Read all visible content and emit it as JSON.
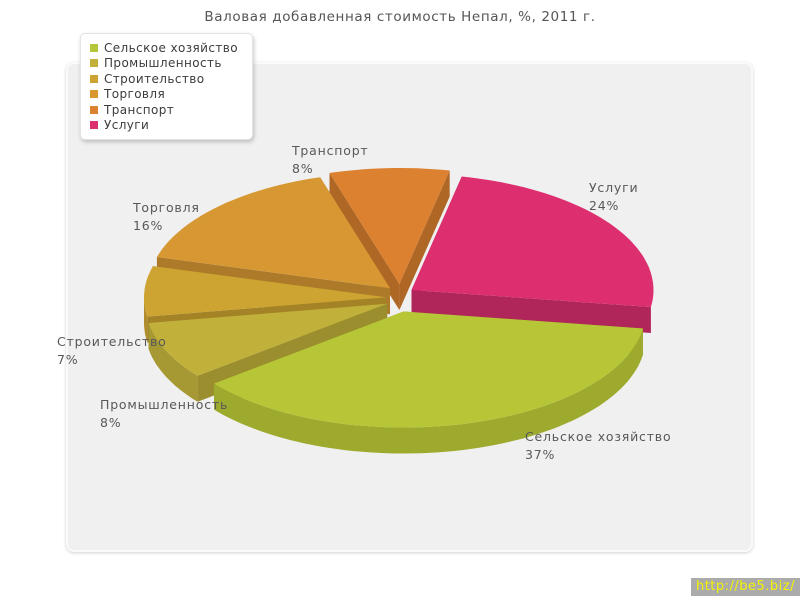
{
  "chart_data": {
    "type": "pie",
    "style": "3d-exploded",
    "title": "Валовая добавленная стоимость Непал, %, 2011 г.",
    "legend_position": "top-left",
    "start_angle_deg": -8.4,
    "direction": "clockwise",
    "slices": [
      {
        "name": "Сельское хозяйство",
        "value": 37,
        "percent_label": "37%",
        "color": "#b7c636"
      },
      {
        "name": "Промышленность",
        "value": 8,
        "percent_label": "8%",
        "color": "#c1b13a"
      },
      {
        "name": "Строительство",
        "value": 7,
        "percent_label": "7%",
        "color": "#cda431"
      },
      {
        "name": "Торговля",
        "value": 16,
        "percent_label": "16%",
        "color": "#d79833"
      },
      {
        "name": "Транспорт",
        "value": 8,
        "percent_label": "8%",
        "color": "#db8130"
      },
      {
        "name": "Услуги",
        "value": 24,
        "percent_label": "24%",
        "color": "#dd2f70"
      }
    ]
  },
  "watermark": {
    "text": "http://be5.biz/"
  }
}
